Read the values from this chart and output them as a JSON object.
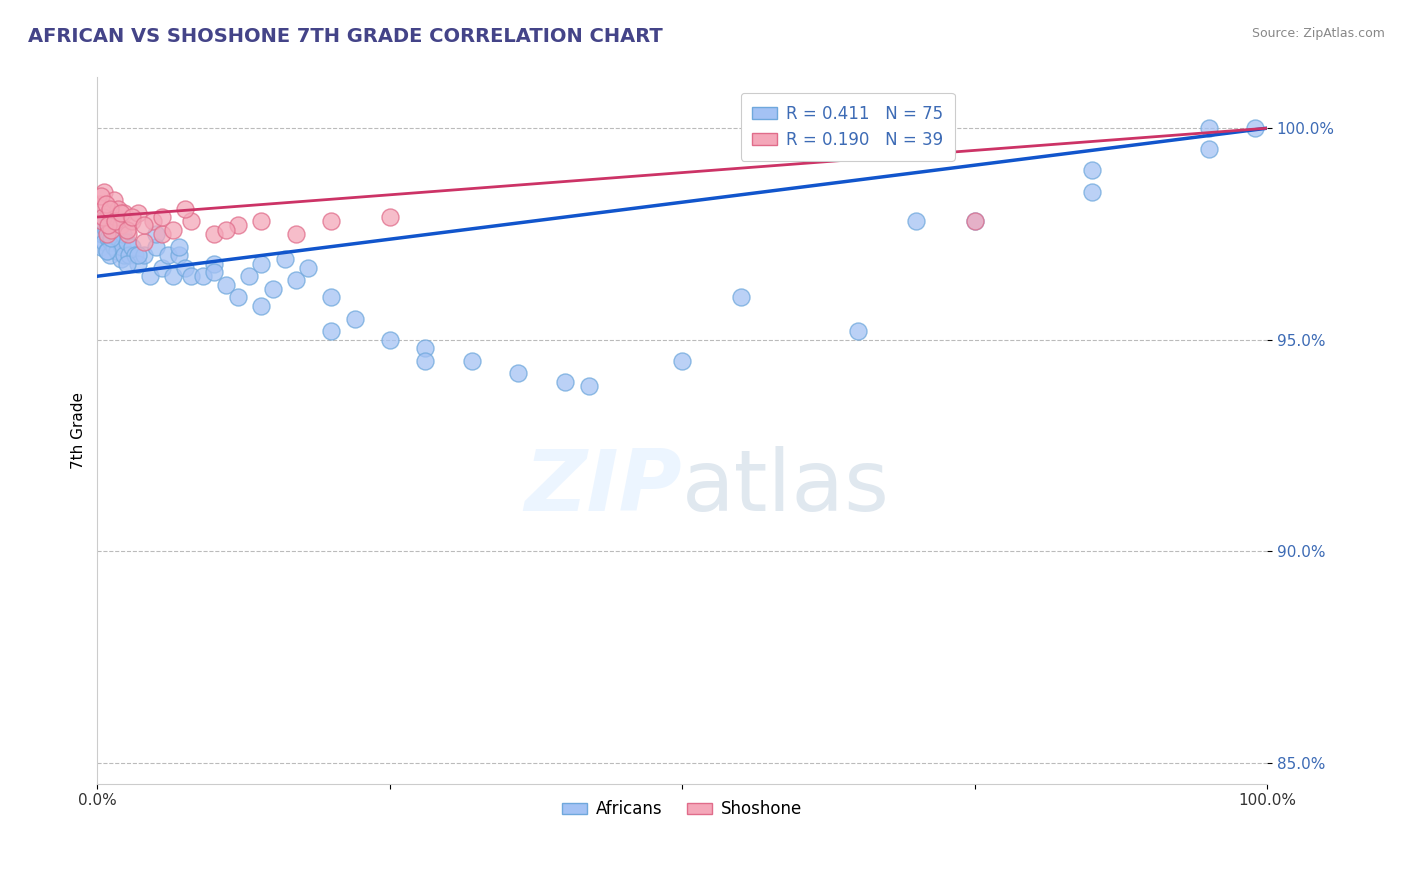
{
  "title": "AFRICAN VS SHOSHONE 7TH GRADE CORRELATION CHART",
  "source": "Source: ZipAtlas.com",
  "ylabel": "7th Grade",
  "xlim": [
    0.0,
    100.0
  ],
  "ylim": [
    84.5,
    101.2
  ],
  "yticks": [
    85.0,
    90.0,
    95.0,
    100.0
  ],
  "ytick_labels": [
    "85.0%",
    "90.0%",
    "95.0%",
    "100.0%"
  ],
  "r_african": 0.411,
  "n_african": 75,
  "r_shoshone": 0.19,
  "n_shoshone": 39,
  "blue_color": "#a4c2f4",
  "pink_color": "#f4a7b9",
  "blue_line_color": "#1155cc",
  "pink_line_color": "#cc3366",
  "blue_marker_edge": "#6fa8dc",
  "pink_marker_edge": "#e06c8a",
  "africans_x": [
    0.3,
    0.4,
    0.5,
    0.6,
    0.7,
    0.8,
    0.9,
    1.0,
    1.1,
    1.2,
    1.3,
    1.4,
    1.5,
    1.6,
    1.7,
    1.8,
    1.9,
    2.0,
    2.1,
    2.2,
    2.3,
    2.5,
    2.7,
    3.0,
    3.2,
    3.5,
    4.0,
    4.5,
    5.0,
    5.5,
    6.0,
    6.5,
    7.0,
    7.5,
    8.0,
    9.0,
    10.0,
    11.0,
    12.0,
    13.0,
    14.0,
    15.0,
    16.0,
    17.0,
    18.0,
    20.0,
    22.0,
    25.0,
    28.0,
    32.0,
    36.0,
    42.0,
    50.0,
    65.0,
    75.0,
    85.0,
    95.0,
    0.5,
    0.8,
    1.2,
    1.8,
    2.5,
    3.5,
    5.0,
    7.0,
    10.0,
    14.0,
    20.0,
    28.0,
    40.0,
    55.0,
    70.0,
    85.0,
    95.0,
    99.0
  ],
  "africans_y": [
    97.2,
    97.5,
    97.8,
    97.3,
    97.6,
    97.1,
    97.4,
    97.7,
    97.0,
    97.3,
    97.6,
    97.2,
    97.5,
    97.8,
    97.1,
    97.4,
    97.7,
    96.9,
    97.2,
    97.5,
    97.0,
    97.3,
    97.0,
    97.2,
    97.0,
    96.8,
    97.0,
    96.5,
    97.2,
    96.7,
    97.0,
    96.5,
    97.0,
    96.7,
    96.5,
    96.5,
    96.8,
    96.3,
    96.0,
    96.5,
    96.8,
    96.2,
    96.9,
    96.4,
    96.7,
    96.0,
    95.5,
    95.0,
    94.8,
    94.5,
    94.2,
    93.9,
    94.5,
    95.2,
    97.8,
    98.5,
    100.0,
    97.9,
    97.1,
    97.4,
    97.8,
    96.8,
    97.0,
    97.5,
    97.2,
    96.6,
    95.8,
    95.2,
    94.5,
    94.0,
    96.0,
    97.8,
    99.0,
    99.5,
    100.0
  ],
  "shoshone_x": [
    0.2,
    0.4,
    0.6,
    0.8,
    1.0,
    1.2,
    1.4,
    1.6,
    1.8,
    2.0,
    2.3,
    2.6,
    3.0,
    3.5,
    4.0,
    4.8,
    5.5,
    6.5,
    8.0,
    10.0,
    12.0,
    14.0,
    17.0,
    20.0,
    25.0,
    0.3,
    0.5,
    0.7,
    0.9,
    1.1,
    1.5,
    2.0,
    2.5,
    3.0,
    4.0,
    5.5,
    7.5,
    11.0,
    75.0
  ],
  "shoshone_y": [
    98.2,
    97.8,
    98.5,
    97.5,
    98.0,
    97.6,
    98.3,
    97.9,
    98.1,
    97.7,
    98.0,
    97.5,
    97.8,
    98.0,
    97.3,
    97.8,
    97.5,
    97.6,
    97.8,
    97.5,
    97.7,
    97.8,
    97.5,
    97.8,
    97.9,
    98.4,
    97.9,
    98.2,
    97.7,
    98.1,
    97.8,
    98.0,
    97.6,
    97.9,
    97.7,
    97.9,
    98.1,
    97.6,
    97.8
  ],
  "blue_trendline_x0": 0.0,
  "blue_trendline_y0": 96.5,
  "blue_trendline_x1": 100.0,
  "blue_trendline_y1": 100.0,
  "pink_trendline_x0": 0.0,
  "pink_trendline_y0": 97.9,
  "pink_trendline_x1": 100.0,
  "pink_trendline_y1": 100.0
}
